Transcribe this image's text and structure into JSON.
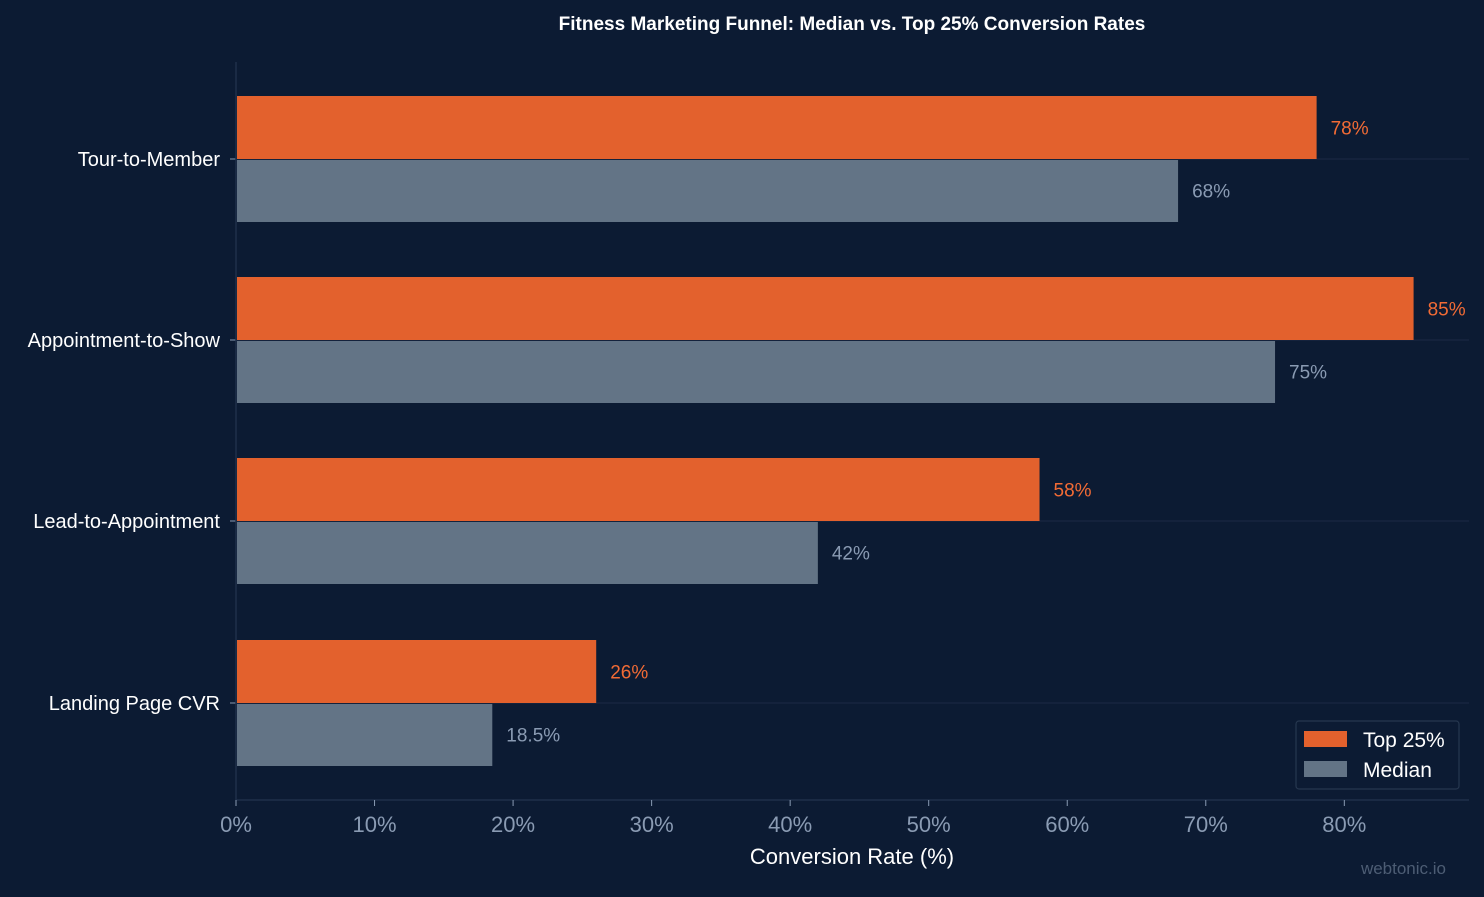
{
  "chart_data": {
    "type": "bar",
    "orientation": "horizontal",
    "title": "Fitness Marketing Funnel: Median vs. Top 25% Conversion Rates",
    "xlabel": "Conversion Rate (%)",
    "ylabel": "",
    "xlim": [
      0,
      89
    ],
    "xticks": [
      0,
      10,
      20,
      30,
      40,
      50,
      60,
      70,
      80
    ],
    "xtick_labels": [
      "0%",
      "10%",
      "20%",
      "30%",
      "40%",
      "50%",
      "60%",
      "70%",
      "80%"
    ],
    "categories": [
      "Tour-to-Member",
      "Appointment-to-Show",
      "Lead-to-Appointment",
      "Landing Page CVR"
    ],
    "series": [
      {
        "name": "Top 25%",
        "color": "#e3612d",
        "label_color": "#f26b35",
        "values": [
          78,
          85,
          58,
          26
        ],
        "value_labels": [
          "78%",
          "85%",
          "58%",
          "26%"
        ]
      },
      {
        "name": "Median",
        "color": "#637486",
        "label_color": "#8a9bb3",
        "values": [
          68,
          75,
          42,
          18.5
        ],
        "value_labels": [
          "68%",
          "75%",
          "42%",
          "18.5%"
        ]
      }
    ],
    "legend_position": "bottom-right",
    "grid": "horizontal separators between categories"
  },
  "watermark": "webtonic.io",
  "colors": {
    "background": "#0c1b33",
    "axis": "#1e2f4a",
    "grid": "#1b2a44"
  }
}
